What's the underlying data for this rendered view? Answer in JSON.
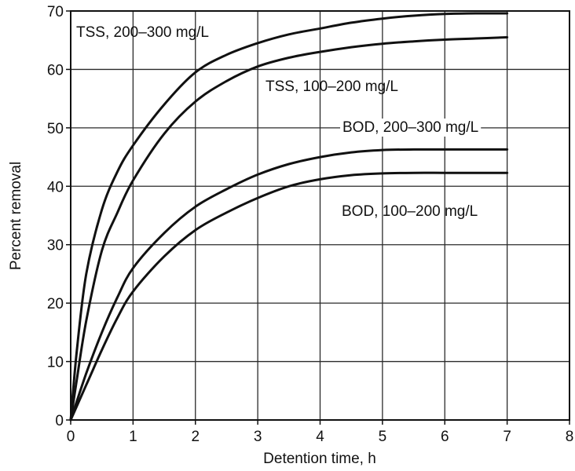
{
  "chart_data": {
    "type": "line",
    "title": "",
    "xlabel": "Detention time, h",
    "ylabel": "Percent removal",
    "xlim": [
      0,
      8
    ],
    "ylim": [
      0,
      70
    ],
    "x_ticks": [
      "0",
      "1",
      "2",
      "3",
      "4",
      "5",
      "6",
      "7",
      "8"
    ],
    "y_ticks": [
      "0",
      "10",
      "20",
      "30",
      "40",
      "50",
      "60",
      "70"
    ],
    "grid": true,
    "line_color": "#111111",
    "series": [
      {
        "name": "TSS, 200–300 mg/L",
        "x": [
          0,
          0.1,
          0.25,
          0.5,
          0.75,
          1,
          1.5,
          2,
          2.5,
          3,
          3.5,
          4,
          4.5,
          5,
          5.5,
          6,
          6.5,
          7
        ],
        "y": [
          0,
          12,
          25,
          36,
          42.5,
          47,
          54,
          59.5,
          62.5,
          64.5,
          66,
          67,
          68,
          68.7,
          69.2,
          69.5,
          69.6,
          69.6
        ]
      },
      {
        "name": "TSS, 100–200 mg/L",
        "x": [
          0,
          0.1,
          0.25,
          0.5,
          0.75,
          1,
          1.5,
          2,
          2.5,
          3,
          3.5,
          4,
          4.5,
          5,
          5.5,
          6,
          6.5,
          7
        ],
        "y": [
          0,
          7,
          17,
          29,
          35.5,
          41,
          49,
          54.5,
          58,
          60.5,
          62,
          63,
          63.8,
          64.4,
          64.8,
          65.1,
          65.3,
          65.5
        ]
      },
      {
        "name": "BOD, 200–300 mg/L",
        "x": [
          0,
          0.25,
          0.5,
          0.75,
          1,
          1.5,
          2,
          2.5,
          3,
          3.5,
          4,
          4.5,
          5,
          5.5,
          6,
          6.5,
          7
        ],
        "y": [
          0,
          8,
          15,
          21,
          26,
          32,
          36.5,
          39.5,
          42,
          43.8,
          45,
          45.8,
          46.2,
          46.3,
          46.3,
          46.3,
          46.3
        ]
      },
      {
        "name": "BOD, 100–200 mg/L",
        "x": [
          0,
          0.25,
          0.5,
          0.75,
          1,
          1.5,
          2,
          2.5,
          3,
          3.5,
          4,
          4.5,
          5,
          5.5,
          6,
          6.5,
          7
        ],
        "y": [
          0,
          6,
          12,
          17.5,
          22,
          28,
          32.5,
          35.5,
          38,
          40,
          41.2,
          41.9,
          42.2,
          42.3,
          42.3,
          42.3,
          42.3
        ]
      }
    ],
    "annotations": [
      {
        "text": "TSS, 200–300 mg/L",
        "series": 0
      },
      {
        "text": "TSS, 100–200 mg/L",
        "series": 1
      },
      {
        "text": "BOD, 200–300 mg/L",
        "series": 2
      },
      {
        "text": "BOD, 100–200 mg/L",
        "series": 3
      }
    ]
  }
}
